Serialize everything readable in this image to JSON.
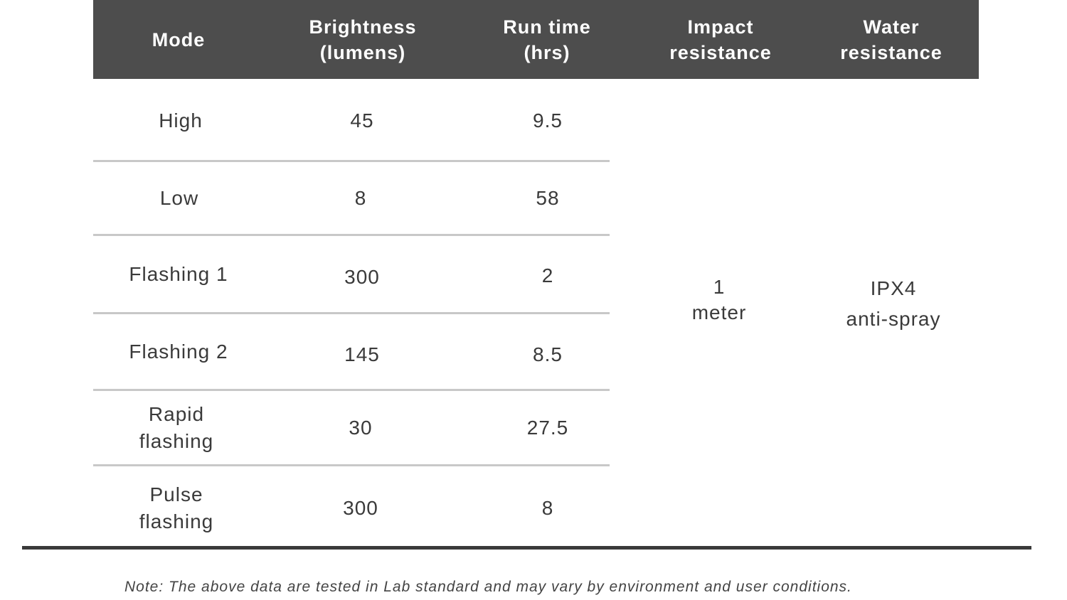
{
  "table": {
    "headers": {
      "mode": [
        "Mode"
      ],
      "brightness": [
        "Brightness",
        "(lumens)"
      ],
      "run_time": [
        "Run time",
        "(hrs)"
      ],
      "impact": [
        "Impact",
        "resistance"
      ],
      "water": [
        "Water",
        "resistance"
      ]
    },
    "rows": [
      {
        "mode": [
          "High"
        ],
        "brightness": "45",
        "run_time": "9.5"
      },
      {
        "mode": [
          "Low"
        ],
        "brightness": "8",
        "run_time": "58"
      },
      {
        "mode": [
          "Flashing 1"
        ],
        "brightness": "300",
        "run_time": "2"
      },
      {
        "mode": [
          "Flashing 2"
        ],
        "brightness": "145",
        "run_time": "8.5"
      },
      {
        "mode": [
          "Rapid",
          "flashing"
        ],
        "brightness": "30",
        "run_time": "27.5"
      },
      {
        "mode": [
          "Pulse",
          "flashing"
        ],
        "brightness": "300",
        "run_time": "8"
      }
    ],
    "impact_resistance": [
      "1",
      "meter"
    ],
    "water_resistance": [
      "IPX4",
      "anti-spray"
    ]
  },
  "note": "Note: The above data are tested in Lab standard and may vary by environment and user conditions."
}
